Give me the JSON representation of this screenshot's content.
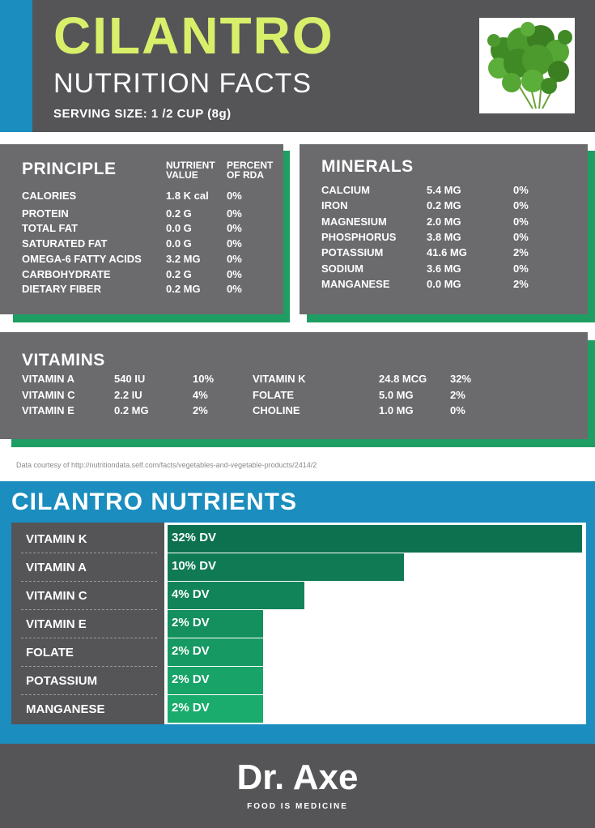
{
  "header": {
    "title": "CILANTRO",
    "subtitle": "NUTRITION FACTS",
    "serving": "SERVING SIZE: 1 /2 CUP (8g)",
    "image_icon": "cilantro-leaves-icon"
  },
  "principle": {
    "title": "PRINCIPLE",
    "col_value": "NUTRIENT VALUE",
    "col_value_1": "NUTRIENT",
    "col_value_2": "VALUE",
    "col_rda_1": "PERCENT",
    "col_rda_2": "OF RDA",
    "rows": [
      {
        "name": "CALORIES",
        "value": "1.8 K  cal",
        "rda": "0%"
      },
      {
        "name": "PROTEIN",
        "value": "0.2 G",
        "rda": "0%"
      },
      {
        "name": "TOTAL FAT",
        "value": "0.0 G",
        "rda": "0%"
      },
      {
        "name": "SATURATED FAT",
        "value": "0.0 G",
        "rda": "0%"
      },
      {
        "name": "OMEGA-6 FATTY ACIDS",
        "value": "3.2 MG",
        "rda": "0%"
      },
      {
        "name": "CARBOHYDRATE",
        "value": "0.2 G",
        "rda": "0%"
      },
      {
        "name": "DIETARY FIBER",
        "value": "0.2 MG",
        "rda": "0%"
      }
    ]
  },
  "minerals": {
    "title": "MINERALS",
    "rows": [
      {
        "name": "CALCIUM",
        "value": "5.4 MG",
        "rda": "0%"
      },
      {
        "name": "IRON",
        "value": "0.2 MG",
        "rda": "0%"
      },
      {
        "name": "MAGNESIUM",
        "value": "2.0 MG",
        "rda": "0%"
      },
      {
        "name": "PHOSPHORUS",
        "value": "3.8 MG",
        "rda": "0%"
      },
      {
        "name": "POTASSIUM",
        "value": "41.6 MG",
        "rda": "2%"
      },
      {
        "name": "SODIUM",
        "value": "3.6 MG",
        "rda": "0%"
      },
      {
        "name": "MANGANESE",
        "value": "0.0 MG",
        "rda": "2%"
      }
    ]
  },
  "vitamins": {
    "title": "VITAMINS",
    "left": [
      {
        "name": "VITAMIN A",
        "value": "540 IU",
        "rda": "10%"
      },
      {
        "name": "VITAMIN C",
        "value": "2.2 IU",
        "rda": "4%"
      },
      {
        "name": "VITAMIN E",
        "value": "0.2 MG",
        "rda": "2%"
      }
    ],
    "right": [
      {
        "name": "VITAMIN K",
        "value": "24.8 MCG",
        "rda": "32%"
      },
      {
        "name": "FOLATE",
        "value": "5.0 MG",
        "rda": "2%"
      },
      {
        "name": "CHOLINE",
        "value": "1.0 MG",
        "rda": "0%"
      }
    ]
  },
  "credit": "Data courtesy of http://nutritiondata.self.com/facts/vegetables-and-vegetable-products/2414/2",
  "chart_data": {
    "type": "bar",
    "orientation": "horizontal",
    "title": "CILANTRO NUTRIENTS",
    "categories": [
      "VITAMIN K",
      "VITAMIN A",
      "VITAMIN C",
      "VITAMIN E",
      "FOLATE",
      "POTASSIUM",
      "MANGANESE"
    ],
    "values": [
      32,
      10,
      4,
      2,
      2,
      2,
      2
    ],
    "value_labels": [
      "32% DV",
      "10% DV",
      "4% DV",
      "2% DV",
      "2% DV",
      "2% DV",
      "2% DV"
    ],
    "bar_widths_note": "",
    "display_fractions": [
      1.0,
      0.57,
      0.33,
      0.23,
      0.23,
      0.23,
      0.23
    ],
    "colors": [
      "#0d7150",
      "#107a55",
      "#128459",
      "#148f5e",
      "#169963",
      "#18a368",
      "#1aac6d"
    ],
    "xlabel": "",
    "ylabel": ""
  },
  "footer": {
    "brand": "Dr. Axe",
    "tagline": "FOOD IS MEDICINE"
  },
  "colors": {
    "title_lime": "#d8ef6a",
    "accent_blue": "#1b8dbf",
    "accent_green": "#1f9e63",
    "panel_gray": "#6b6b6e",
    "band_gray": "#555558"
  }
}
